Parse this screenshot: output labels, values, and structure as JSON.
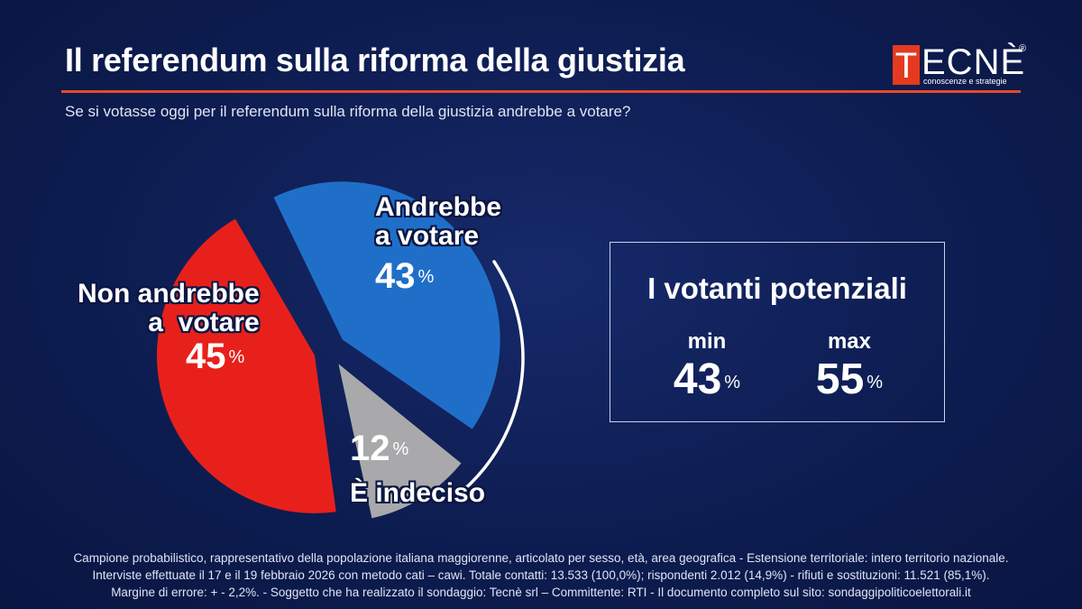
{
  "header": {
    "title": "Il referendum sulla riforma della giustizia",
    "subtitle": "Se si votasse oggi per il referendum sulla riforma della giustizia andrebbe a votare?"
  },
  "logo": {
    "letter": "T",
    "word": "ECNÈ",
    "registered": "®",
    "tagline": "conoscenze e strategie"
  },
  "chart_data": {
    "type": "pie",
    "title": "Se si votasse oggi per il referendum sulla riforma della giustizia andrebbe a votare?",
    "unit": "%",
    "slices": [
      {
        "label_line1": "Andrebbe",
        "label_line2": "a votare",
        "value": 43,
        "color": "#1f6fc9"
      },
      {
        "label_line1": "È indeciso",
        "label_line2": "",
        "value": 12,
        "color": "#a9a9ab"
      },
      {
        "label_line1": "Non andrebbe",
        "label_line2": "a  votare",
        "value": 45,
        "color": "#e8201c"
      }
    ]
  },
  "potential": {
    "title": "I votanti potenziali",
    "min_label": "min",
    "min_value": "43",
    "max_label": "max",
    "max_value": "55",
    "unit": "%"
  },
  "footer": {
    "line1": "Campione probabilistico, rappresentativo della popolazione italiana maggiorenne, articolato per sesso, età, area geografica - Estensione territoriale: intero territorio nazionale.",
    "line2": "Interviste effettuate il 17 e il 19 febbraio 2026 con metodo cati – cawi. Totale contatti: 13.533 (100,0%); rispondenti 2.012 (14,9%) - rifiuti e sostituzioni: 11.521 (85,1%).",
    "line3": "Margine di errore: + - 2,2%.  - Soggetto che ha realizzato il sondaggio: Tecnè srl – Committente: RTI - Il documento completo sul sito: sondaggipoliticoelettorali.it"
  }
}
